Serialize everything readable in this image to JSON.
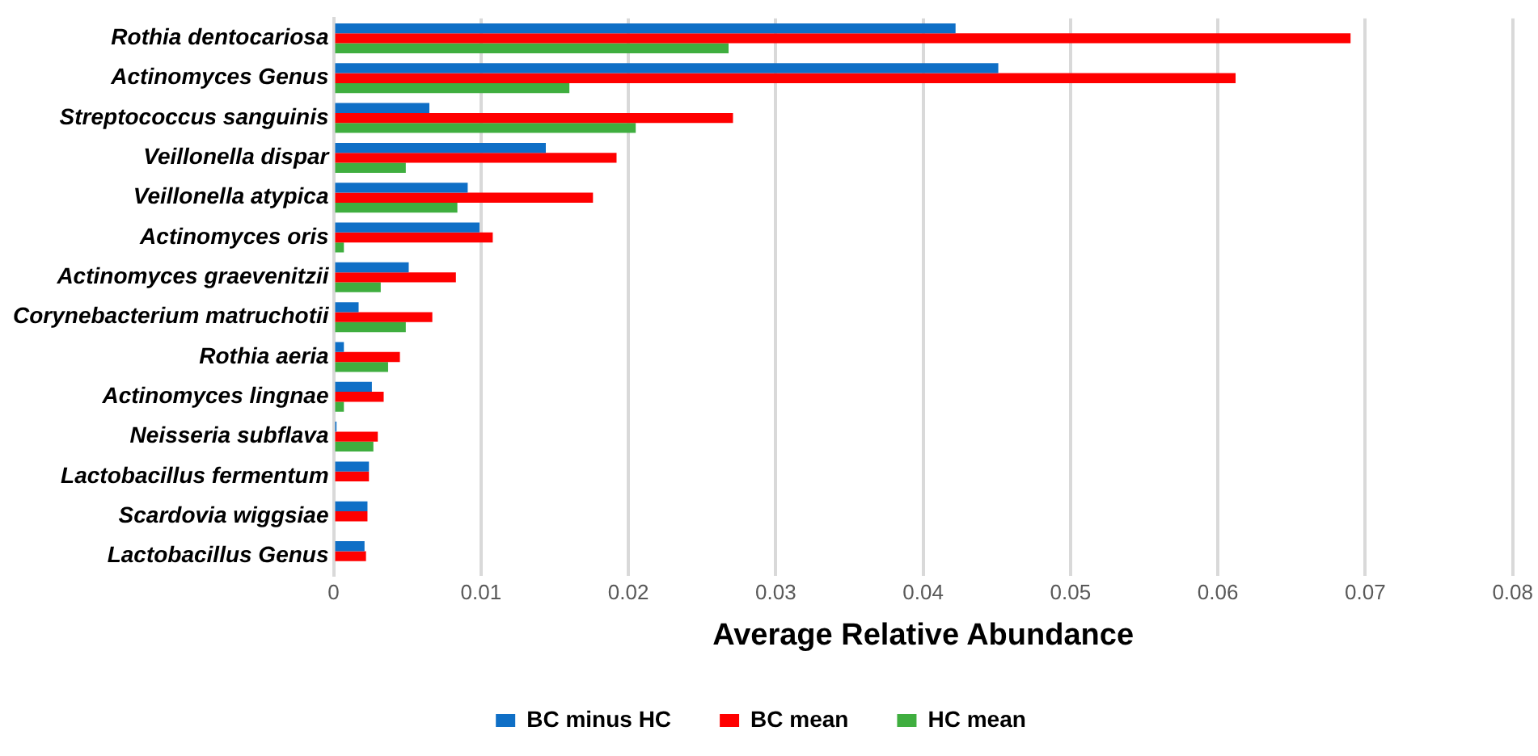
{
  "chart_data": {
    "type": "bar",
    "orientation": "horizontal",
    "xlabel": "Average Relative Abundance",
    "categories": [
      "Rothia dentocariosa",
      "Actinomyces Genus",
      "Streptococcus sanguinis",
      "Veillonella dispar",
      "Veillonella atypica",
      "Actinomyces oris",
      "Actinomyces graevenitzii",
      "Corynebacterium matruchotii",
      "Rothia aeria",
      "Actinomyces lingnae",
      "Neisseria subflava",
      "Lactobacillus fermentum",
      "Scardovia wiggsiae",
      "Lactobacillus Genus"
    ],
    "series": [
      {
        "name": "BC minus HC",
        "color": "#0f6fc6",
        "values": [
          0.0422,
          0.0451,
          0.0065,
          0.0144,
          0.0091,
          0.0099,
          0.0051,
          0.0017,
          0.0007,
          0.0026,
          0.0002,
          0.0024,
          0.0023,
          0.0021
        ]
      },
      {
        "name": "BC mean",
        "color": "#ff0000",
        "values": [
          0.069,
          0.0612,
          0.0271,
          0.0192,
          0.0176,
          0.0108,
          0.0083,
          0.0067,
          0.0045,
          0.0034,
          0.003,
          0.0024,
          0.0023,
          0.0022
        ]
      },
      {
        "name": "HC mean",
        "color": "#3fae3f",
        "values": [
          0.0268,
          0.016,
          0.0205,
          0.0049,
          0.0084,
          0.0007,
          0.0032,
          0.0049,
          0.0037,
          0.0007,
          0.0027,
          null,
          null,
          null
        ]
      }
    ],
    "xlim": [
      0,
      0.08
    ],
    "xticks": [
      0,
      0.01,
      0.02,
      0.03,
      0.04,
      0.05,
      0.06,
      0.07,
      0.08
    ],
    "grid": "x",
    "legend": "bottom"
  }
}
